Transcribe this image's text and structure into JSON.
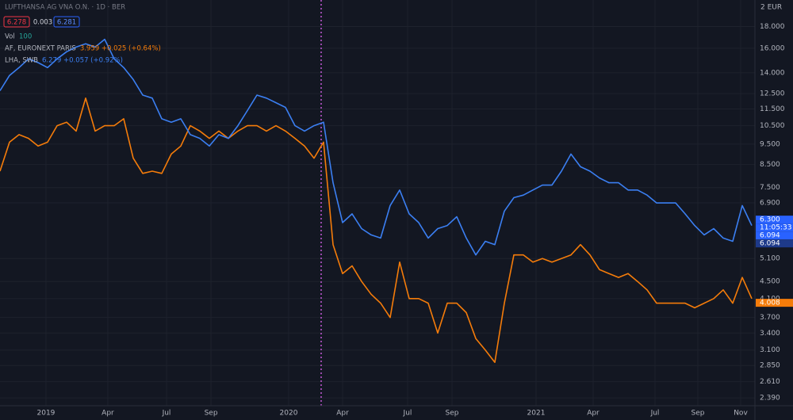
{
  "chart_data": {
    "type": "line",
    "title": "LUFTHANSA AG VNA O.N. · 1D · BER",
    "ohlc_boxes": [
      "6.278",
      "0.003",
      "6.281"
    ],
    "volume_label": "Vol",
    "volume_value": "100",
    "currency_label": "2 EUR",
    "log_scale": true,
    "grid": true,
    "series": [
      {
        "name": "AF, EURONEXT PARIS",
        "legend_value": "3.959 +0.025 (+0.64%)",
        "color": "#f57c0a",
        "values": [
          8.2,
          9.6,
          10.0,
          9.8,
          9.4,
          9.6,
          10.5,
          10.7,
          10.2,
          12.2,
          10.2,
          10.5,
          10.5,
          10.9,
          8.8,
          8.1,
          8.2,
          8.1,
          9.0,
          9.4,
          10.5,
          10.2,
          9.8,
          10.2,
          9.8,
          10.2,
          10.5,
          10.5,
          10.2,
          10.5,
          10.2,
          9.8,
          9.4,
          8.8,
          9.6,
          5.5,
          4.7,
          4.9,
          4.5,
          4.2,
          4.0,
          3.7,
          5.0,
          4.1,
          4.1,
          4.0,
          3.4,
          4.0,
          4.0,
          3.8,
          3.3,
          3.1,
          2.9,
          4.0,
          5.2,
          5.2,
          5.0,
          5.1,
          5.0,
          5.1,
          5.2,
          5.5,
          5.2,
          4.8,
          4.7,
          4.6,
          4.7,
          4.5,
          4.3,
          4.0,
          4.0,
          4.0,
          4.0,
          3.9,
          4.0,
          4.1,
          4.3,
          4.0,
          4.6,
          4.1
        ]
      },
      {
        "name": "LHA, SWB",
        "legend_value": "6.279 +0.057 (+0.92%)",
        "color": "#3b7ff2",
        "values": [
          12.7,
          13.8,
          14.4,
          15.1,
          14.8,
          14.4,
          15.1,
          15.7,
          16.1,
          16.4,
          16.1,
          16.8,
          15.1,
          14.4,
          13.5,
          12.4,
          12.2,
          10.9,
          10.7,
          10.9,
          10.0,
          9.8,
          9.4,
          10.0,
          9.8,
          10.5,
          11.4,
          12.4,
          12.2,
          11.9,
          11.6,
          10.5,
          10.2,
          10.5,
          10.7,
          7.7,
          6.2,
          6.5,
          6.0,
          5.8,
          5.7,
          6.8,
          7.4,
          6.5,
          6.2,
          5.7,
          6.0,
          6.1,
          6.4,
          5.7,
          5.2,
          5.6,
          5.5,
          6.6,
          7.1,
          7.2,
          7.4,
          7.6,
          7.6,
          8.2,
          9.0,
          8.4,
          8.2,
          7.9,
          7.7,
          7.7,
          7.4,
          7.4,
          7.2,
          6.9,
          6.9,
          6.9,
          6.5,
          6.1,
          5.8,
          6.0,
          5.7,
          5.6,
          6.8,
          6.1
        ]
      }
    ],
    "price_tags": [
      {
        "value": 6.3,
        "label": "6.300",
        "color": "#2962ff"
      },
      {
        "label": "11:05:33",
        "color": "#2962ff"
      },
      {
        "value": 6.094,
        "label": "6.094",
        "color": "#2962ff"
      },
      {
        "value": 6.094,
        "label": "6.094",
        "color": "#1e3a8a"
      },
      {
        "value": 4.008,
        "label": "4.008",
        "color": "#f57c0a"
      }
    ],
    "xlim": [
      0,
      79.33
    ],
    "xticks": [
      {
        "value": 4.83,
        "label": "2019"
      },
      {
        "value": 11.33,
        "label": "Apr"
      },
      {
        "value": 17.5,
        "label": "Jul"
      },
      {
        "value": 22.17,
        "label": "Sep"
      },
      {
        "value": 30.33,
        "label": "2020"
      },
      {
        "value": 36,
        "label": "Apr"
      },
      {
        "value": 42.83,
        "label": "Jul"
      },
      {
        "value": 47.5,
        "label": "Sep"
      },
      {
        "value": 56.33,
        "label": "2021"
      },
      {
        "value": 62.33,
        "label": "Apr"
      },
      {
        "value": 68.83,
        "label": "Jul"
      },
      {
        "value": 73.33,
        "label": "Sep"
      },
      {
        "value": 77.83,
        "label": "Nov"
      }
    ],
    "ylim": [
      2.29,
      20.8
    ],
    "yticks": [
      {
        "value": 18,
        "label": "18.000"
      },
      {
        "value": 16,
        "label": "16.000"
      },
      {
        "value": 14,
        "label": "14.000"
      },
      {
        "value": 12.5,
        "label": "12.500"
      },
      {
        "value": 11.5,
        "label": "11.500"
      },
      {
        "value": 10.5,
        "label": "10.500"
      },
      {
        "value": 9.5,
        "label": "9.500"
      },
      {
        "value": 8.5,
        "label": "8.500"
      },
      {
        "value": 7.5,
        "label": "7.500"
      },
      {
        "value": 6.9,
        "label": "6.900"
      },
      {
        "value": 5.1,
        "label": "5.100"
      },
      {
        "value": 4.5,
        "label": "4.500"
      },
      {
        "value": 4.1,
        "label": "4.100"
      },
      {
        "value": 3.7,
        "label": "3.700"
      },
      {
        "value": 3.4,
        "label": "3.400"
      },
      {
        "value": 3.1,
        "label": "3.100"
      },
      {
        "value": 2.85,
        "label": "2.850"
      },
      {
        "value": 2.61,
        "label": "2.610"
      },
      {
        "value": 2.39,
        "label": "2.390"
      }
    ]
  }
}
